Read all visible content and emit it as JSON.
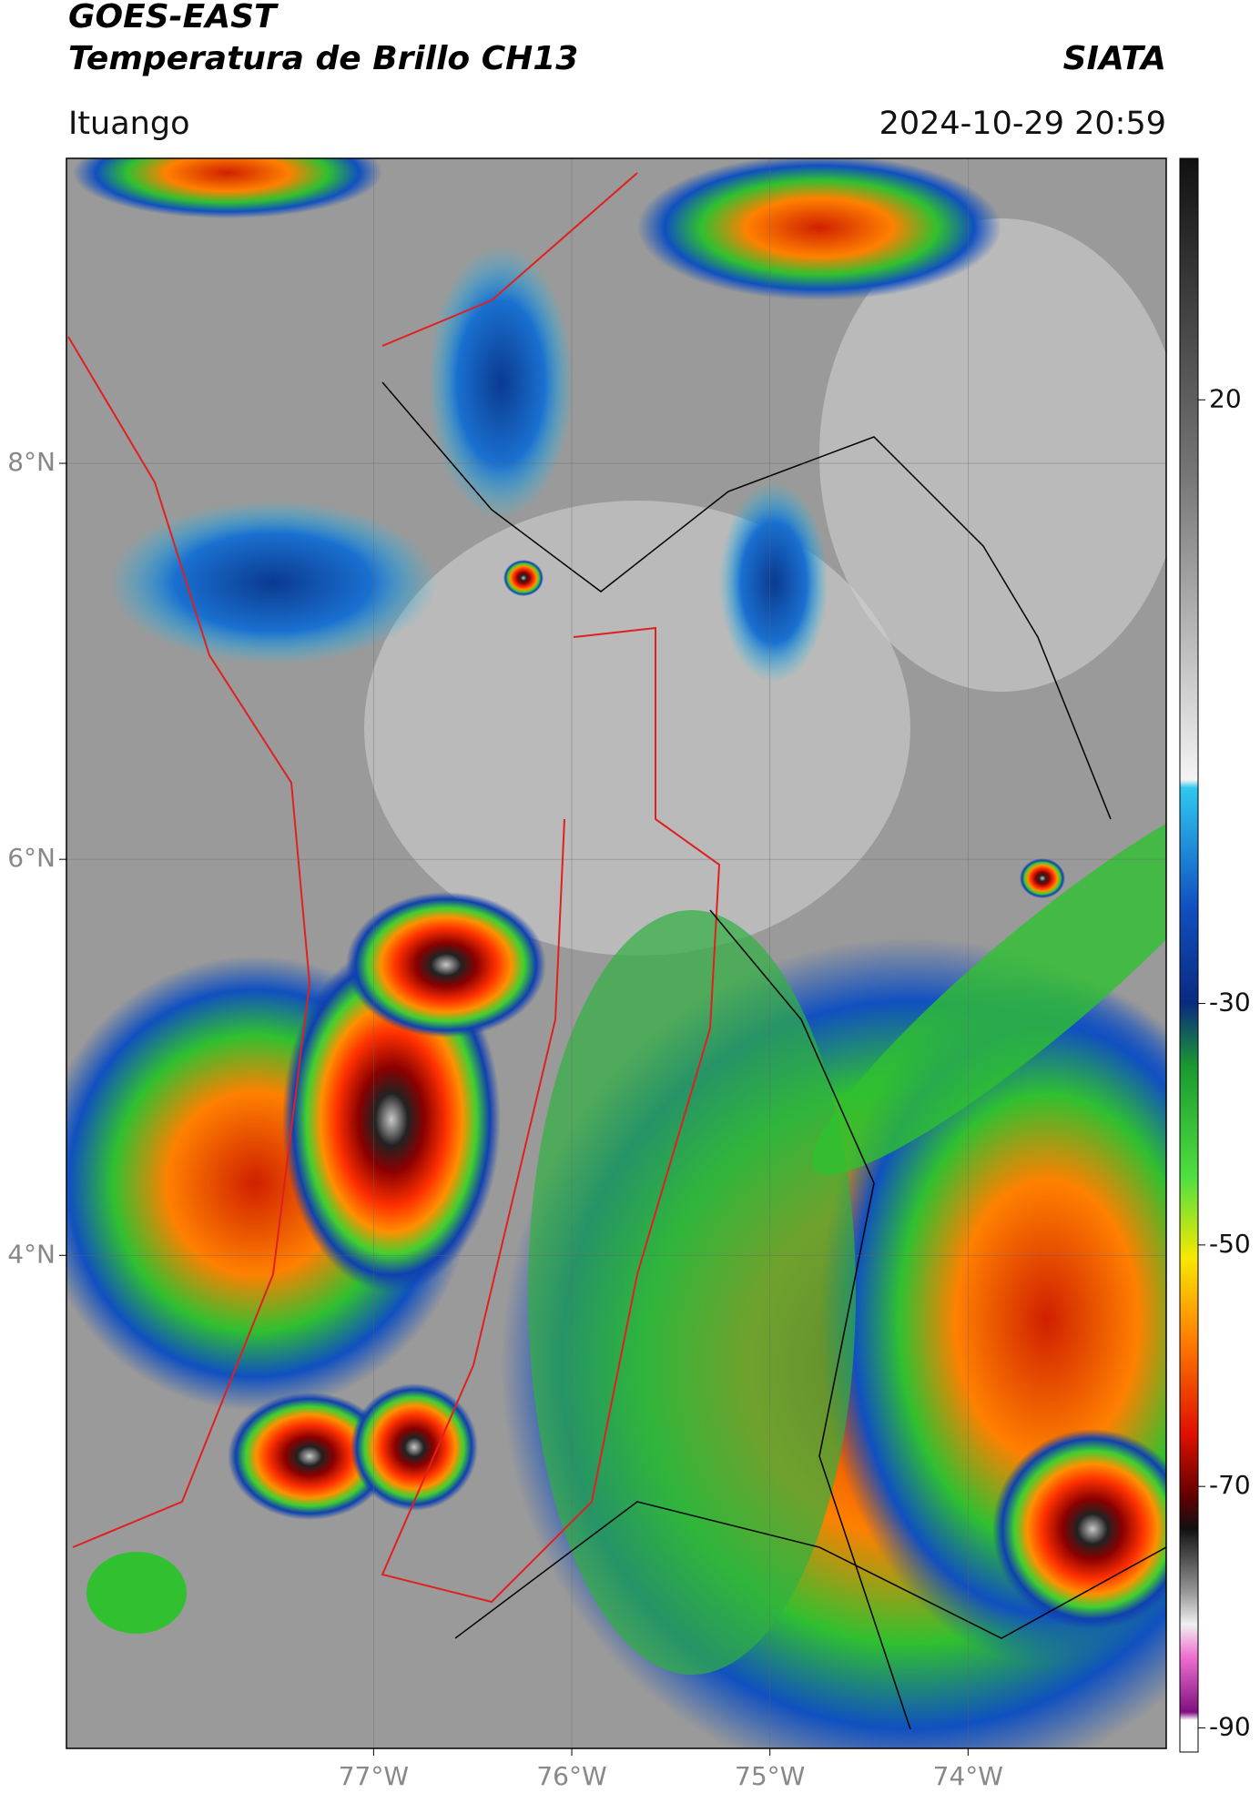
{
  "header": {
    "title": "GOES-EAST",
    "subtitle": "Temperatura de Brillo CH13",
    "credit": "SIATA",
    "region": "Ituango",
    "timestamp": "2024-10-29 20:59"
  },
  "map": {
    "xlim": [
      -78.55,
      -73.0
    ],
    "ylim": [
      1.51,
      9.54
    ],
    "xticks": [
      {
        "value": -77,
        "label": "77°W"
      },
      {
        "value": -76,
        "label": "76°W"
      },
      {
        "value": -75,
        "label": "75°W"
      },
      {
        "value": -74,
        "label": "74°W"
      }
    ],
    "yticks": [
      {
        "value": 8,
        "label": "8°N"
      },
      {
        "value": 6,
        "label": "6°N"
      },
      {
        "value": 4,
        "label": "4°N"
      }
    ],
    "grid": true
  },
  "colorbar": {
    "lim": [
      40,
      -92
    ],
    "ticks": [
      20,
      -30,
      -50,
      -70,
      -90
    ]
  }
}
